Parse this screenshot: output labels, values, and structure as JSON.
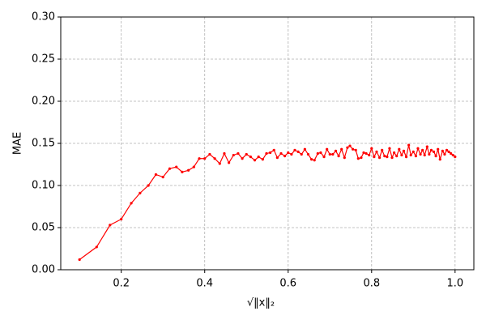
{
  "chart_data": {
    "type": "line",
    "xlabel": "√‖x‖₂",
    "ylabel": "MAE",
    "x": [
      0.1,
      0.141,
      0.173,
      0.2,
      0.224,
      0.245,
      0.265,
      0.283,
      0.3,
      0.316,
      0.332,
      0.346,
      0.361,
      0.374,
      0.387,
      0.4,
      0.412,
      0.424,
      0.436,
      0.447,
      0.458,
      0.469,
      0.48,
      0.49,
      0.5,
      0.51,
      0.52,
      0.529,
      0.539,
      0.548,
      0.557,
      0.566,
      0.574,
      0.583,
      0.592,
      0.6,
      0.608,
      0.616,
      0.624,
      0.632,
      0.64,
      0.648,
      0.656,
      0.663,
      0.671,
      0.678,
      0.686,
      0.693,
      0.7,
      0.707,
      0.714,
      0.721,
      0.728,
      0.735,
      0.742,
      0.748,
      0.755,
      0.762,
      0.768,
      0.775,
      0.781,
      0.787,
      0.794,
      0.8,
      0.806,
      0.812,
      0.819,
      0.825,
      0.831,
      0.837,
      0.843,
      0.849,
      0.854,
      0.86,
      0.866,
      0.872,
      0.877,
      0.883,
      0.889,
      0.894,
      0.9,
      0.906,
      0.911,
      0.917,
      0.922,
      0.927,
      0.933,
      0.938,
      0.943,
      0.949,
      0.954,
      0.959,
      0.964,
      0.97,
      0.975,
      0.98,
      0.985,
      0.99,
      0.995,
      1
    ],
    "series": [
      {
        "color": "#ff0000",
        "values": [
          0.012,
          0.027,
          0.053,
          0.06,
          0.079,
          0.091,
          0.1,
          0.113,
          0.11,
          0.12,
          0.122,
          0.116,
          0.118,
          0.122,
          0.132,
          0.132,
          0.137,
          0.132,
          0.126,
          0.138,
          0.127,
          0.136,
          0.138,
          0.132,
          0.137,
          0.134,
          0.13,
          0.134,
          0.131,
          0.138,
          0.139,
          0.142,
          0.133,
          0.138,
          0.135,
          0.139,
          0.137,
          0.142,
          0.14,
          0.137,
          0.143,
          0.137,
          0.131,
          0.13,
          0.138,
          0.139,
          0.134,
          0.143,
          0.137,
          0.137,
          0.141,
          0.135,
          0.143,
          0.133,
          0.145,
          0.147,
          0.143,
          0.142,
          0.132,
          0.133,
          0.139,
          0.138,
          0.136,
          0.144,
          0.134,
          0.14,
          0.133,
          0.142,
          0.135,
          0.134,
          0.144,
          0.133,
          0.139,
          0.135,
          0.143,
          0.136,
          0.141,
          0.134,
          0.148,
          0.136,
          0.14,
          0.135,
          0.144,
          0.137,
          0.142,
          0.136,
          0.146,
          0.137,
          0.142,
          0.14,
          0.135,
          0.143,
          0.131,
          0.141,
          0.137,
          0.142,
          0.14,
          0.138,
          0.136,
          0.134
        ]
      }
    ],
    "xlim": [
      0.055,
      1.045
    ],
    "xticks": [
      0.2,
      0.4,
      0.6,
      0.8,
      {
        "value": 1,
        "label": "1.0"
      }
    ],
    "ylim": [
      0,
      0.3
    ],
    "yticks": [
      {
        "value": 0,
        "label": "0.00"
      },
      {
        "value": 0.05,
        "label": "0.05"
      },
      {
        "value": 0.1,
        "label": "0.10"
      },
      {
        "value": 0.15,
        "label": "0.15"
      },
      {
        "value": 0.2,
        "label": "0.20"
      },
      {
        "value": 0.25,
        "label": "0.25"
      },
      {
        "value": 0.3,
        "label": "0.30"
      }
    ],
    "grid": true
  }
}
